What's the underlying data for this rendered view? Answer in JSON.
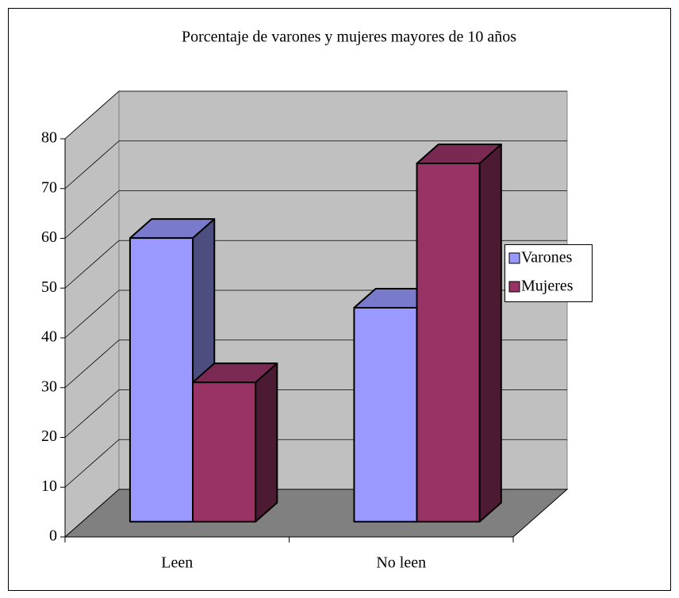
{
  "chart_data": {
    "type": "bar3d",
    "title": "Porcentaje  de  varones y  mujeres  mayores de 10 años",
    "categories": [
      "Leen",
      "No leen"
    ],
    "series": [
      {
        "name": "Varones",
        "color": "#9999ff",
        "values": [
          57,
          43
        ]
      },
      {
        "name": "Mujeres",
        "color": "#993366",
        "values": [
          28,
          72
        ]
      }
    ],
    "ylim": [
      0,
      80
    ],
    "yticks": [
      0,
      10,
      20,
      30,
      40,
      50,
      60,
      70,
      80
    ],
    "grid": true,
    "legend": "right"
  }
}
